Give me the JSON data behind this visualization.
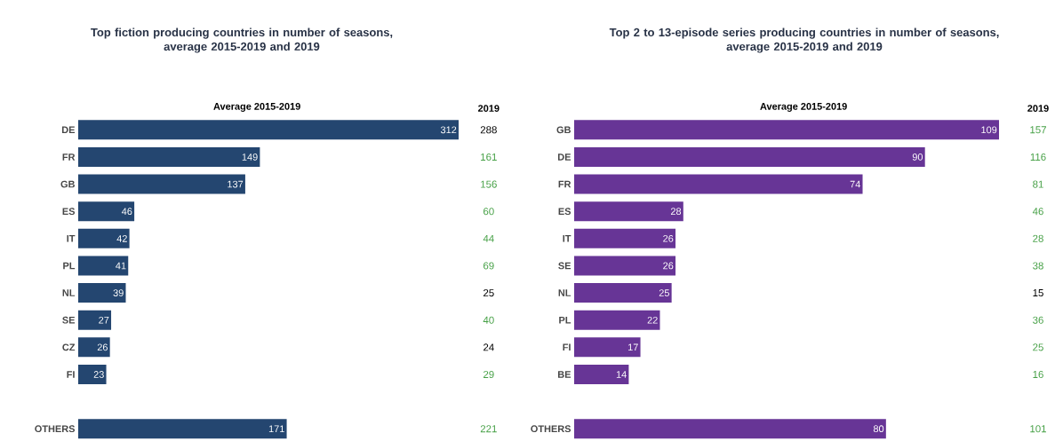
{
  "chart_data": [
    {
      "type": "bar",
      "orientation": "horizontal",
      "title": "Top fiction producing countries in number of seasons,",
      "subtitle": "average 2015-2019 and 2019",
      "categories": [
        "DE",
        "FR",
        "GB",
        "ES",
        "IT",
        "PL",
        "NL",
        "SE",
        "CZ",
        "FI",
        null,
        "OTHERS"
      ],
      "series": [
        {
          "name": "Average 2015-2019",
          "color": "#244670",
          "values": [
            312,
            149,
            137,
            46,
            42,
            41,
            39,
            27,
            26,
            23,
            null,
            171
          ]
        }
      ],
      "xlim": [
        0,
        312
      ],
      "data_labels": true,
      "tick_labels": "y",
      "annotations": [
        "2019",
        "288",
        "161",
        "156",
        "60",
        "44",
        "69",
        "25",
        "40",
        "24",
        "29",
        "221"
      ]
    },
    {
      "type": "bar",
      "orientation": "horizontal",
      "title": "Top 2 to 13-episode series producing countries in number of seasons,",
      "subtitle": "average 2015-2019 and 2019",
      "categories": [
        "GB",
        "DE",
        "FR",
        "ES",
        "IT",
        "SE",
        "NL",
        "PL",
        "FI",
        "BE",
        null,
        "OTHERS"
      ],
      "series": [
        {
          "name": "Average 2015-2019",
          "color": "#673596",
          "values": [
            109,
            90,
            74,
            28,
            26,
            26,
            25,
            22,
            17,
            14,
            null,
            80
          ]
        }
      ],
      "xlim": [
        0,
        109
      ],
      "data_labels": true,
      "tick_labels": "y",
      "annotations": [
        "2019",
        "157",
        "116",
        "81",
        "46",
        "28",
        "38",
        "15",
        "36",
        "25",
        "16",
        "101"
      ]
    }
  ]
}
